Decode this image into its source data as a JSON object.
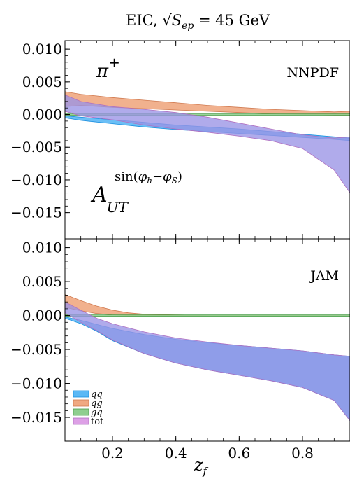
{
  "figure": {
    "title": "EIC, √S_ep = 45 GeV",
    "title_main": "EIC, ",
    "title_sqrt": "√",
    "title_S": "S",
    "title_sub": "ep",
    "title_eq": " = 45 GeV",
    "xlabel": "z",
    "xlabel_sub": "f",
    "observable_A": "A",
    "observable_sub": "UT",
    "observable_sup": "sin(φh−φS)",
    "observable_sup_a": "sin(",
    "observable_sup_phi1": "φ",
    "observable_sup_h": "h",
    "observable_sup_minus": "−",
    "observable_sup_phi2": "φ",
    "observable_sup_S": "S",
    "observable_sup_close": ")",
    "hadron": "π",
    "hadron_charge": "+"
  },
  "legend": [
    {
      "label": "qq",
      "color": "#5bb8f5",
      "edge": "#1a8fe0"
    },
    {
      "label": "qg",
      "color": "#f0a982",
      "edge": "#d07a50"
    },
    {
      "label": "gq",
      "color": "#8fce8f",
      "edge": "#4a9e4a"
    },
    {
      "label": "tot",
      "color": "#dda0e6",
      "edge": "#b070c0"
    }
  ],
  "chart_data": [
    {
      "type": "area",
      "panel": "top",
      "panel_label": "NNPDF",
      "xlim": [
        0.05,
        0.95
      ],
      "ylim": [
        -0.019,
        0.0113
      ],
      "xticks": [
        0.2,
        0.4,
        0.6,
        0.8
      ],
      "yticks": [
        0.01,
        0.005,
        0.0,
        -0.005,
        -0.01,
        -0.015
      ],
      "ytick_labels": [
        "0.010",
        "0.005",
        "0.000",
        "−0.005",
        "−0.010",
        "−0.015"
      ],
      "series": [
        {
          "name": "qq",
          "x": [
            0.05,
            0.1,
            0.2,
            0.3,
            0.4,
            0.5,
            0.6,
            0.7,
            0.8,
            0.9,
            0.95
          ],
          "lower": [
            -0.0005,
            -0.0009,
            -0.0014,
            -0.0019,
            -0.0023,
            -0.0026,
            -0.0029,
            -0.0032,
            -0.0035,
            -0.0038,
            -0.004
          ],
          "upper": [
            -0.0002,
            -0.0004,
            -0.0008,
            -0.0012,
            -0.0016,
            -0.0019,
            -0.0022,
            -0.0026,
            -0.003,
            -0.0034,
            -0.0036
          ]
        },
        {
          "name": "qg",
          "x": [
            0.05,
            0.1,
            0.2,
            0.3,
            0.4,
            0.5,
            0.6,
            0.7,
            0.8,
            0.9,
            0.95
          ],
          "lower": [
            0.0012,
            0.0014,
            0.0011,
            0.0009,
            0.0007,
            0.0005,
            0.0003,
            0.0001,
            0.0,
            -0.0001,
            -0.0001
          ],
          "upper": [
            0.0035,
            0.0031,
            0.0026,
            0.0022,
            0.0018,
            0.0014,
            0.0011,
            0.0008,
            0.0006,
            0.0004,
            0.0005
          ]
        },
        {
          "name": "gq",
          "x": [
            0.05,
            0.2,
            0.4,
            0.6,
            0.8,
            0.95
          ],
          "lower": [
            -0.0001,
            -0.0001,
            -0.0001,
            -0.0001,
            -0.0001,
            -0.0001
          ],
          "upper": [
            0.0001,
            0.0001,
            0.0001,
            0.0001,
            0.0001,
            0.0001
          ]
        },
        {
          "name": "tot",
          "x": [
            0.05,
            0.1,
            0.2,
            0.3,
            0.4,
            0.5,
            0.6,
            0.7,
            0.8,
            0.9,
            0.95
          ],
          "lower": [
            0.0005,
            -0.0002,
            -0.0008,
            -0.0016,
            -0.0022,
            -0.0027,
            -0.0033,
            -0.004,
            -0.0052,
            -0.0085,
            -0.012
          ],
          "upper": [
            0.003,
            0.002,
            0.0012,
            0.0008,
            0.0003,
            -0.0004,
            -0.0013,
            -0.0022,
            -0.0031,
            -0.0036,
            -0.0034
          ]
        }
      ]
    },
    {
      "type": "area",
      "panel": "bottom",
      "panel_label": "JAM",
      "xlim": [
        0.05,
        0.95
      ],
      "ylim": [
        -0.0185,
        0.0113
      ],
      "xticks": [
        0.2,
        0.4,
        0.6,
        0.8
      ],
      "xtick_labels": [
        "0.2",
        "0.4",
        "0.6",
        "0.8"
      ],
      "yticks": [
        0.01,
        0.005,
        0.0,
        -0.005,
        -0.01,
        -0.015
      ],
      "ytick_labels": [
        "0.010",
        "0.005",
        "0.000",
        "−0.005",
        "−0.010",
        "−0.015"
      ],
      "series": [
        {
          "name": "qq",
          "x": [
            0.05,
            0.1,
            0.15,
            0.2,
            0.3,
            0.4,
            0.5,
            0.6,
            0.7,
            0.8,
            0.9,
            0.95
          ],
          "lower": [
            -0.0004,
            -0.0012,
            -0.0023,
            -0.0037,
            -0.0056,
            -0.007,
            -0.008,
            -0.0088,
            -0.0096,
            -0.0106,
            -0.0125,
            -0.0155
          ],
          "upper": [
            -0.0002,
            -0.0007,
            -0.0013,
            -0.0019,
            -0.0028,
            -0.0035,
            -0.004,
            -0.0044,
            -0.0048,
            -0.0052,
            -0.0058,
            -0.006
          ]
        },
        {
          "name": "qg",
          "x": [
            0.05,
            0.1,
            0.15,
            0.2,
            0.25,
            0.3,
            0.4,
            0.5,
            0.95
          ],
          "lower": [
            0.0012,
            0.0007,
            0.0003,
            0.0001,
            0.0,
            0.0,
            0.0,
            0.0,
            0.0
          ],
          "upper": [
            0.0031,
            0.0022,
            0.0014,
            0.0008,
            0.0004,
            0.0002,
            0.0001,
            0.0,
            0.0
          ]
        },
        {
          "name": "gq",
          "x": [
            0.05,
            0.2,
            0.4,
            0.6,
            0.8,
            0.95
          ],
          "lower": [
            -0.0001,
            -0.0001,
            -0.0001,
            -0.0001,
            -0.0001,
            -0.0001
          ],
          "upper": [
            0.0001,
            0.0001,
            0.0001,
            0.0001,
            0.0001,
            0.0001
          ]
        },
        {
          "name": "tot",
          "x": [
            0.05,
            0.1,
            0.15,
            0.2,
            0.3,
            0.4,
            0.5,
            0.6,
            0.7,
            0.8,
            0.9,
            0.95
          ],
          "lower": [
            0.0004,
            -0.001,
            -0.0022,
            -0.0036,
            -0.0056,
            -0.007,
            -0.008,
            -0.0088,
            -0.0096,
            -0.0106,
            -0.0125,
            -0.0155
          ],
          "upper": [
            0.002,
            0.0008,
            -0.0004,
            -0.0012,
            -0.0024,
            -0.0033,
            -0.0039,
            -0.0044,
            -0.0048,
            -0.0052,
            -0.0058,
            -0.006
          ]
        }
      ]
    }
  ]
}
